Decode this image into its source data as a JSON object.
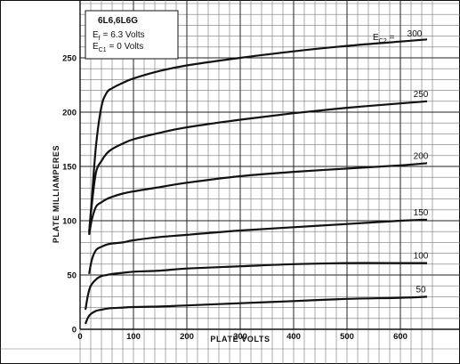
{
  "chart_data": {
    "type": "line",
    "title": "6L6,6L6G",
    "xlabel": "PLATE VOLTS",
    "ylabel": "PLATE MILLIAMPERES",
    "xlim": [
      0,
      660
    ],
    "ylim": [
      0,
      280
    ],
    "x_ticks": [
      0,
      100,
      200,
      300,
      400,
      500,
      600
    ],
    "y_ticks": [
      0,
      50,
      100,
      150,
      200,
      250
    ],
    "grid": true,
    "conditions": {
      "ef": {
        "symbol": "E",
        "sub": "f",
        "text": "= 6.3 Volts"
      },
      "ec1": {
        "symbol": "E",
        "sub": "C1",
        "text": "= 0 Volts"
      }
    },
    "curve_parameter": {
      "symbol": "E",
      "sub": "C2",
      "eq": "="
    },
    "series": [
      {
        "name": "300",
        "x": [
          17,
          22,
          30,
          40,
          50,
          60,
          80,
          100,
          150,
          200,
          300,
          400,
          500,
          600,
          650
        ],
        "y": [
          88,
          120,
          170,
          205,
          218,
          222,
          227,
          231,
          238,
          243,
          250,
          256,
          261,
          265,
          267
        ]
      },
      {
        "name": "250",
        "x": [
          17,
          22,
          30,
          40,
          50,
          60,
          80,
          100,
          150,
          200,
          300,
          400,
          500,
          600,
          650
        ],
        "y": [
          90,
          115,
          145,
          155,
          162,
          166,
          171,
          175,
          181,
          186,
          193,
          199,
          204,
          208,
          210
        ]
      },
      {
        "name": "200",
        "x": [
          17,
          22,
          30,
          40,
          50,
          60,
          80,
          100,
          150,
          200,
          300,
          400,
          500,
          600,
          650
        ],
        "y": [
          87,
          101,
          113,
          117,
          120,
          122,
          125,
          127,
          131,
          135,
          141,
          145,
          148,
          151,
          153
        ]
      },
      {
        "name": "150",
        "x": [
          17,
          22,
          30,
          40,
          50,
          60,
          80,
          100,
          150,
          200,
          300,
          400,
          500,
          600,
          650
        ],
        "y": [
          51,
          64,
          73,
          76,
          78,
          79,
          80,
          82,
          85,
          87,
          91,
          94,
          97,
          100,
          101
        ]
      },
      {
        "name": "100",
        "x": [
          10,
          15,
          20,
          30,
          40,
          50,
          60,
          80,
          100,
          150,
          200,
          300,
          400,
          500,
          600,
          650
        ],
        "y": [
          18,
          32,
          40,
          46,
          49,
          50,
          51,
          52,
          53,
          54,
          56,
          58,
          60,
          61,
          61,
          61
        ]
      },
      {
        "name": "50",
        "x": [
          10,
          15,
          20,
          30,
          40,
          50,
          60,
          80,
          100,
          150,
          200,
          300,
          400,
          500,
          600,
          650
        ],
        "y": [
          5,
          11,
          14,
          17,
          18,
          19,
          19.5,
          20,
          20.5,
          21,
          22,
          24,
          26,
          28,
          29,
          30
        ]
      }
    ]
  }
}
